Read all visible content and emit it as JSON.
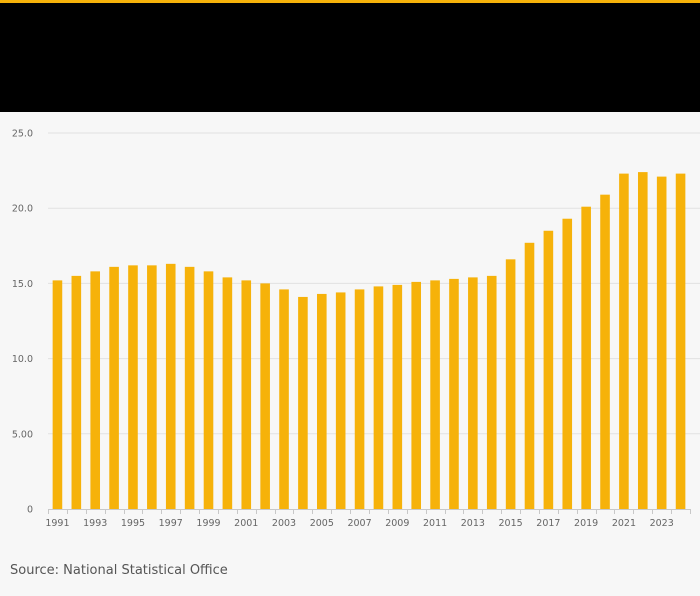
{
  "colors": {
    "accent": "#f6b20a",
    "header_bg": "#000000",
    "grid": "#e2e2e2",
    "axis": "#c8c8c8",
    "tick_text": "#666666"
  },
  "source": "Source: National Statistical Office",
  "chart_data": {
    "type": "bar",
    "title": "",
    "xlabel": "",
    "ylabel": "",
    "ylim": [
      0,
      25
    ],
    "y_ticks": [
      0,
      5,
      10,
      15,
      20,
      25
    ],
    "y_tick_labels": [
      "0",
      "5.00",
      "10.0",
      "15.0",
      "20.0",
      "25.0"
    ],
    "grid": true,
    "categories": [
      "1991",
      "1992",
      "1993",
      "1994",
      "1995",
      "1996",
      "1997",
      "1998",
      "1999",
      "2000",
      "2001",
      "2002",
      "2003",
      "2004",
      "2005",
      "2006",
      "2007",
      "2008",
      "2009",
      "2010",
      "2011",
      "2012",
      "2013",
      "2014",
      "2015",
      "2016",
      "2017",
      "2018",
      "2019",
      "2020",
      "2021",
      "2022",
      "2023",
      "2024"
    ],
    "x_tick_labels": [
      "1991",
      "1993",
      "1995",
      "1997",
      "1999",
      "2001",
      "2003",
      "2005",
      "2007",
      "2009",
      "2011",
      "2013",
      "2015",
      "2017",
      "2019",
      "2021",
      "2023"
    ],
    "values": [
      15.2,
      15.5,
      15.8,
      16.1,
      16.2,
      16.2,
      16.3,
      16.1,
      15.8,
      15.4,
      15.2,
      15.0,
      14.6,
      14.1,
      14.3,
      14.4,
      14.6,
      14.8,
      14.9,
      15.1,
      15.2,
      15.3,
      15.4,
      15.5,
      16.6,
      17.7,
      18.5,
      19.3,
      20.1,
      20.9,
      22.3,
      22.4,
      22.1,
      22.3
    ]
  }
}
